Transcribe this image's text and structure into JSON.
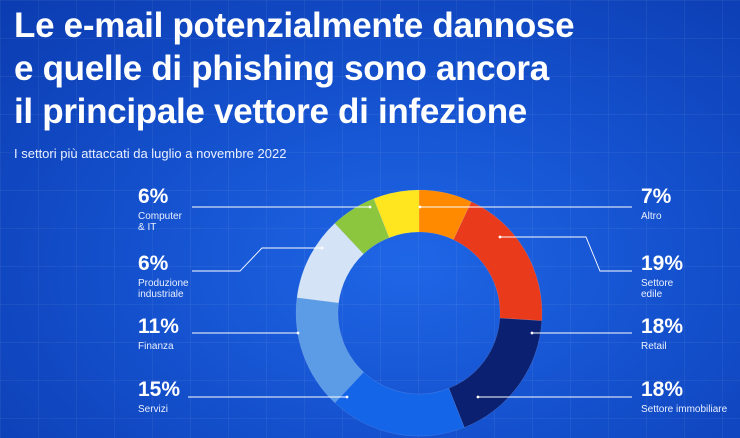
{
  "title_lines": [
    "Le e-mail potenzialmente dannose",
    "e quelle di phishing sono ancora",
    "il principale vettore di infezione"
  ],
  "subtitle": "I settori più attaccati da luglio a novembre 2022",
  "chart_data": {
    "type": "pie",
    "donut": true,
    "title": "Le e-mail potenzialmente dannose e quelle di phishing sono ancora il principale vettore di infezione",
    "subtitle": "I settori più attaccati da luglio a novembre 2022",
    "unit": "%",
    "slices": [
      {
        "label": "Altro",
        "display_label": "Altro",
        "value": 7,
        "value_label": "7%",
        "color": "#ff8a00"
      },
      {
        "label": "Settore edile",
        "display_label": "Settore\nedile",
        "value": 19,
        "value_label": "19%",
        "color": "#ea3a1c"
      },
      {
        "label": "Retail",
        "display_label": "Retail",
        "value": 18,
        "value_label": "18%",
        "color": "#0b2070"
      },
      {
        "label": "Settore immobiliare",
        "display_label": "Settore immobiliare",
        "value": 18,
        "value_label": "18%",
        "color": "#1565e8"
      },
      {
        "label": "Servizi",
        "display_label": "Servizi",
        "value": 15,
        "value_label": "15%",
        "color": "#5c9be6"
      },
      {
        "label": "Finanza",
        "display_label": "Finanza",
        "value": 11,
        "value_label": "11%",
        "color": "#d4e4f6"
      },
      {
        "label": "Produzione industriale",
        "display_label": "Produzione\nindustriale",
        "value": 6,
        "value_label": "6%",
        "color": "#8cc63f"
      },
      {
        "label": "Computer & IT",
        "display_label": "Computer\n& IT",
        "value": 6,
        "value_label": "6%",
        "color": "#ffe61e"
      }
    ],
    "start": "top",
    "direction": "clockwise"
  }
}
